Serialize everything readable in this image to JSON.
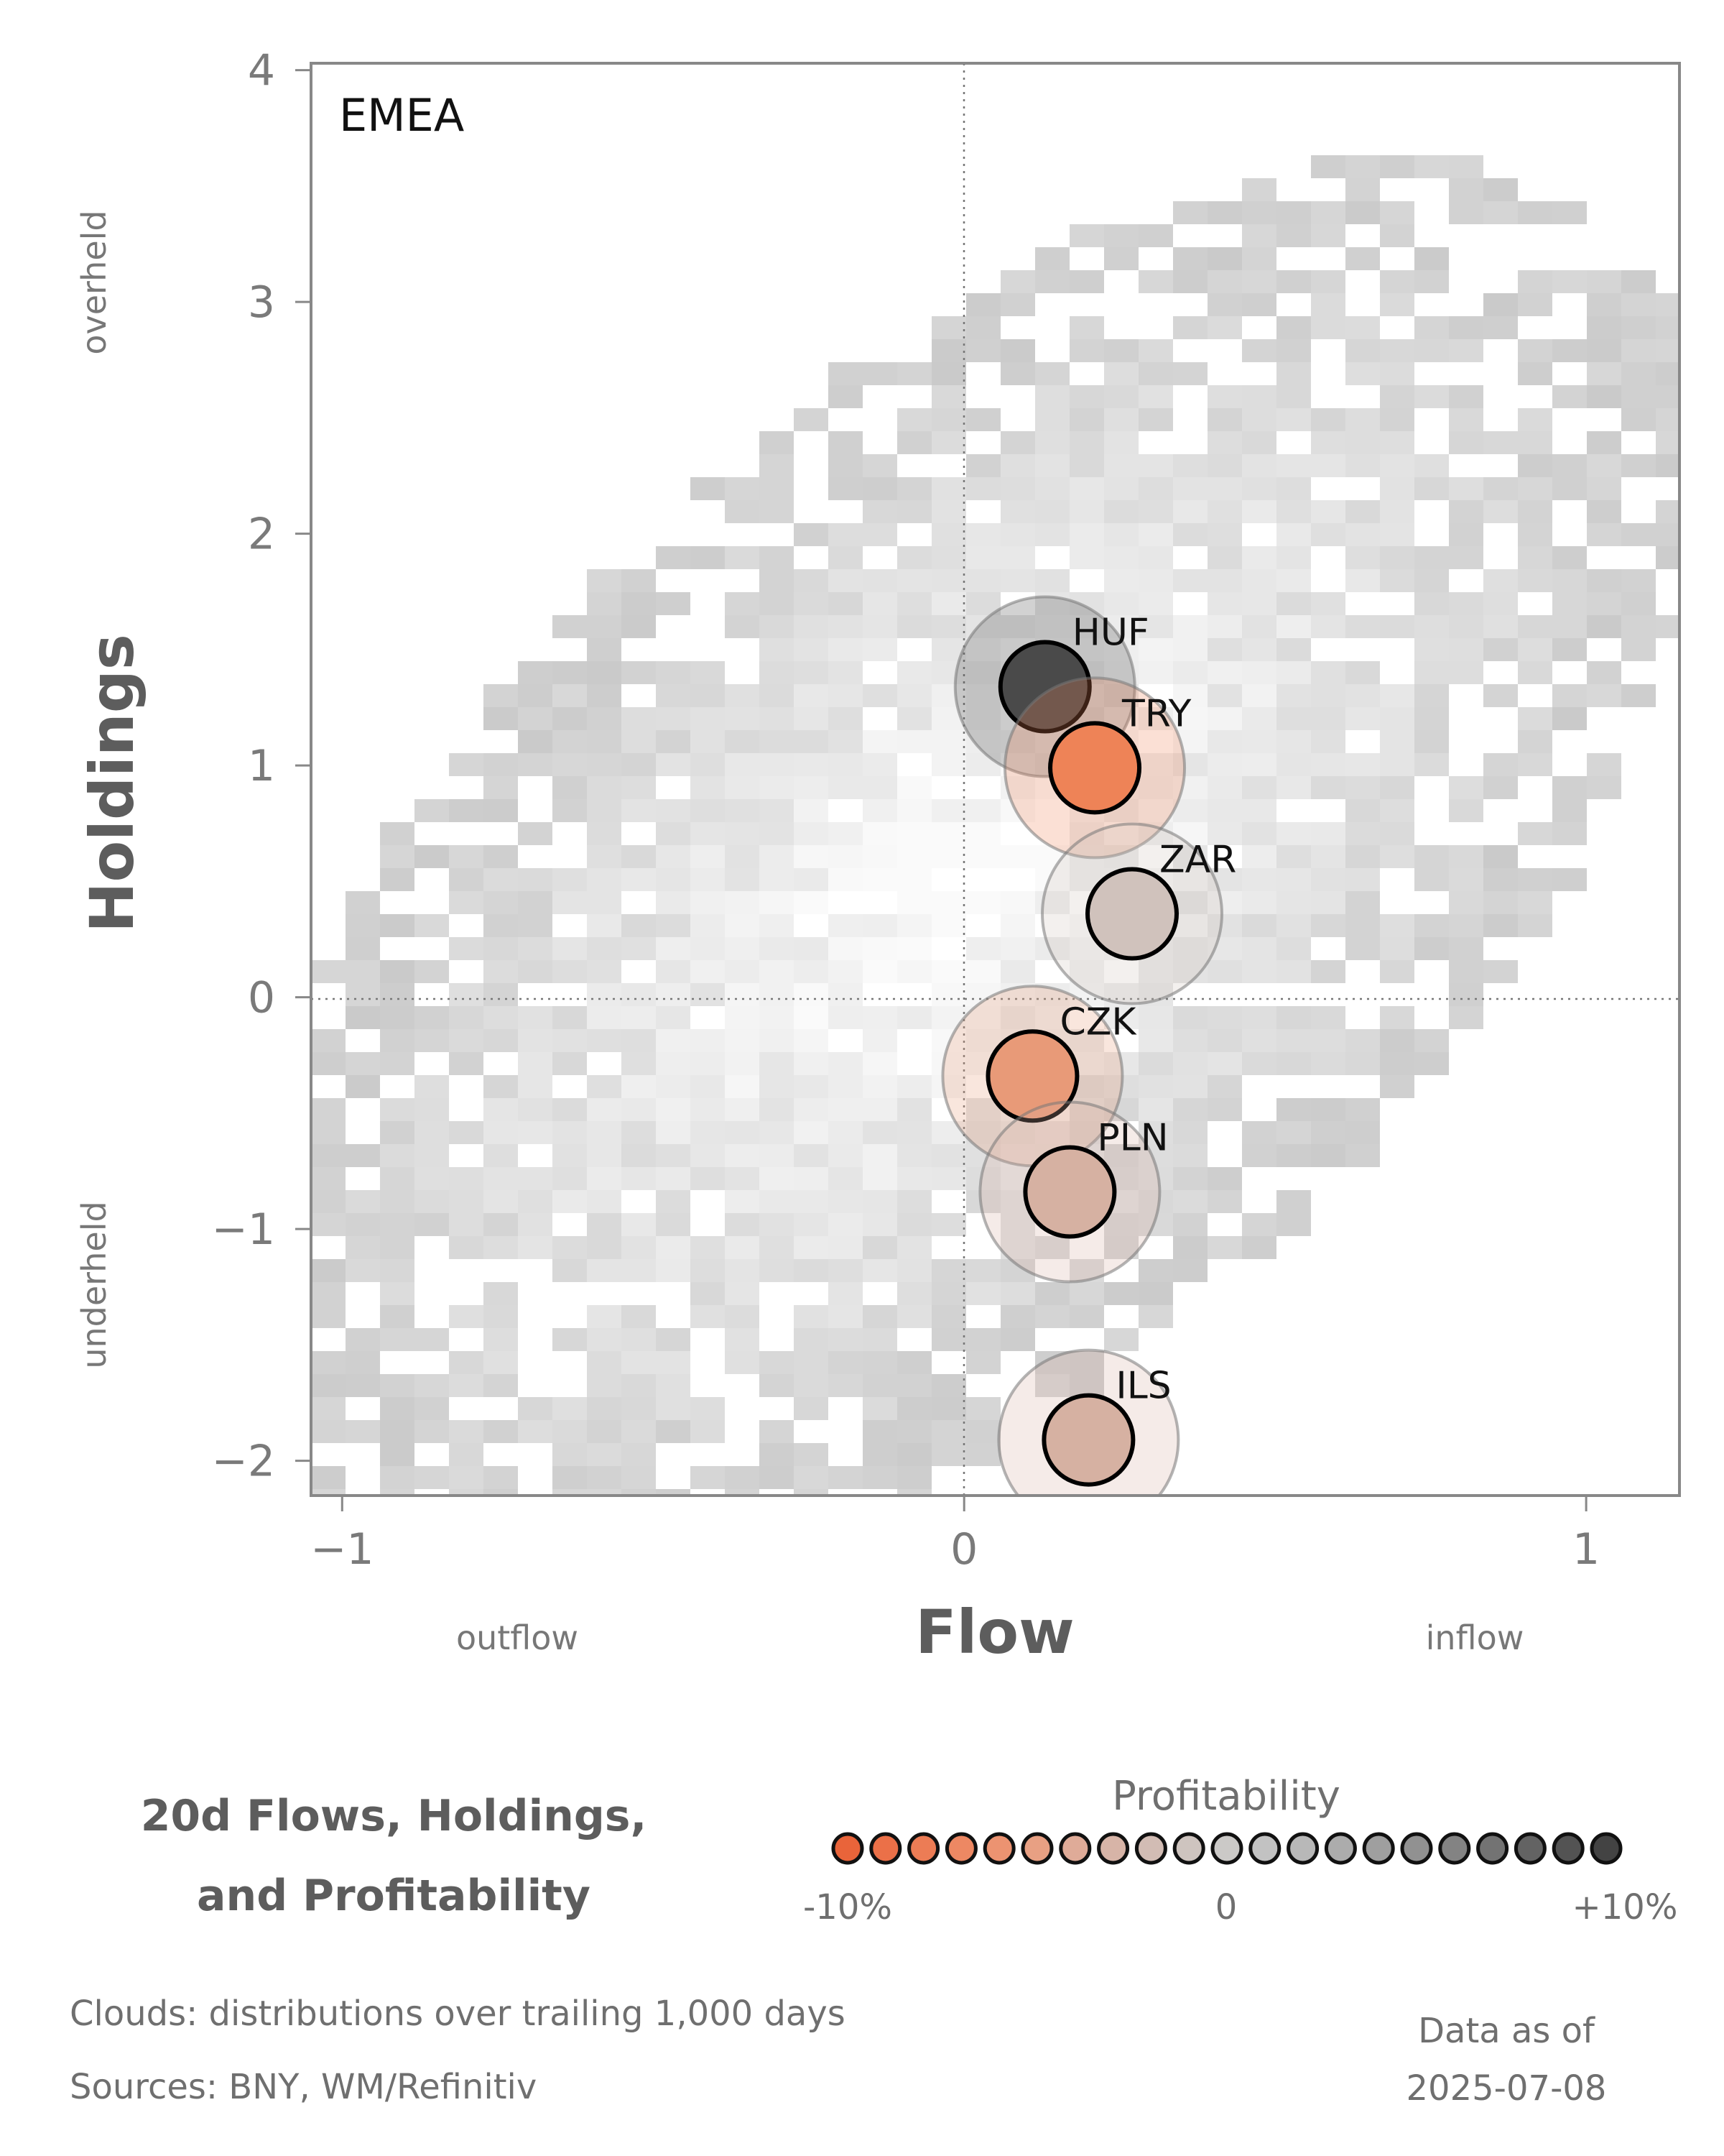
{
  "chart_data": {
    "type": "scatter",
    "region": "EMEA",
    "xlabel": "Flow",
    "ylabel": "Holdings",
    "xlim": [
      -1.05,
      1.15
    ],
    "ylim": [
      -2.15,
      4.03
    ],
    "x_ticks": [
      -1,
      0,
      1
    ],
    "y_ticks": [
      -2,
      -1,
      0,
      1,
      2,
      3,
      4
    ],
    "x_tick_labels": [
      "−1",
      "0",
      "1"
    ],
    "y_tick_labels": [
      "−2",
      "−1",
      "0",
      "1",
      "2",
      "3",
      "4"
    ],
    "x_annotations": {
      "left": "outflow",
      "right": "inflow"
    },
    "y_annotations": {
      "top": "overheld",
      "bottom": "underheld"
    },
    "reference_lines": {
      "x": 0,
      "y": 0,
      "style": "dotted"
    },
    "background": "2D histogram cloud (grey) of flow/holdings distribution",
    "points": [
      {
        "label": "HUF",
        "flow": 0.13,
        "holdings": 1.34,
        "profitability": 10,
        "color": "#4a4a4a"
      },
      {
        "label": "TRY",
        "flow": 0.21,
        "holdings": 0.99,
        "profitability": -9,
        "color": "#ee8357"
      },
      {
        "label": "ZAR",
        "flow": 0.27,
        "holdings": 0.36,
        "profitability": -2,
        "color": "#d0c2bc"
      },
      {
        "label": "CZK",
        "flow": 0.11,
        "holdings": -0.34,
        "profitability": -7,
        "color": "#e89a78"
      },
      {
        "label": "PLN",
        "flow": 0.17,
        "holdings": -0.84,
        "profitability": -4,
        "color": "#d6b1a2"
      },
      {
        "label": "ILS",
        "flow": 0.2,
        "holdings": -1.91,
        "profitability": -4,
        "color": "#d6b1a2"
      }
    ],
    "legend": {
      "title": "Profitability",
      "tick_labels": [
        "-10%",
        "0",
        "+10%"
      ],
      "colors": [
        "#e9643a",
        "#eb7048",
        "#ec7c55",
        "#ed8863",
        "#ec9371",
        "#e8a083",
        "#dfab98",
        "#d7b4a7",
        "#d2bcb4",
        "#cec4bf",
        "#cbc9c7",
        "#c2c2c2",
        "#b8b8b8",
        "#acacac",
        "#9f9f9f",
        "#919191",
        "#838383",
        "#737373",
        "#636363",
        "#535353",
        "#434343"
      ]
    }
  },
  "footer": {
    "title_line1": "20d Flows, Holdings,",
    "title_line2": "and Profitability",
    "clouds_note": "Clouds:  distributions over trailing 1,000 days",
    "sources_note": "Sources:  BNY, WM/Refinitiv",
    "data_as_of_label": "Data as of",
    "data_as_of_date": "2025-07-08"
  }
}
